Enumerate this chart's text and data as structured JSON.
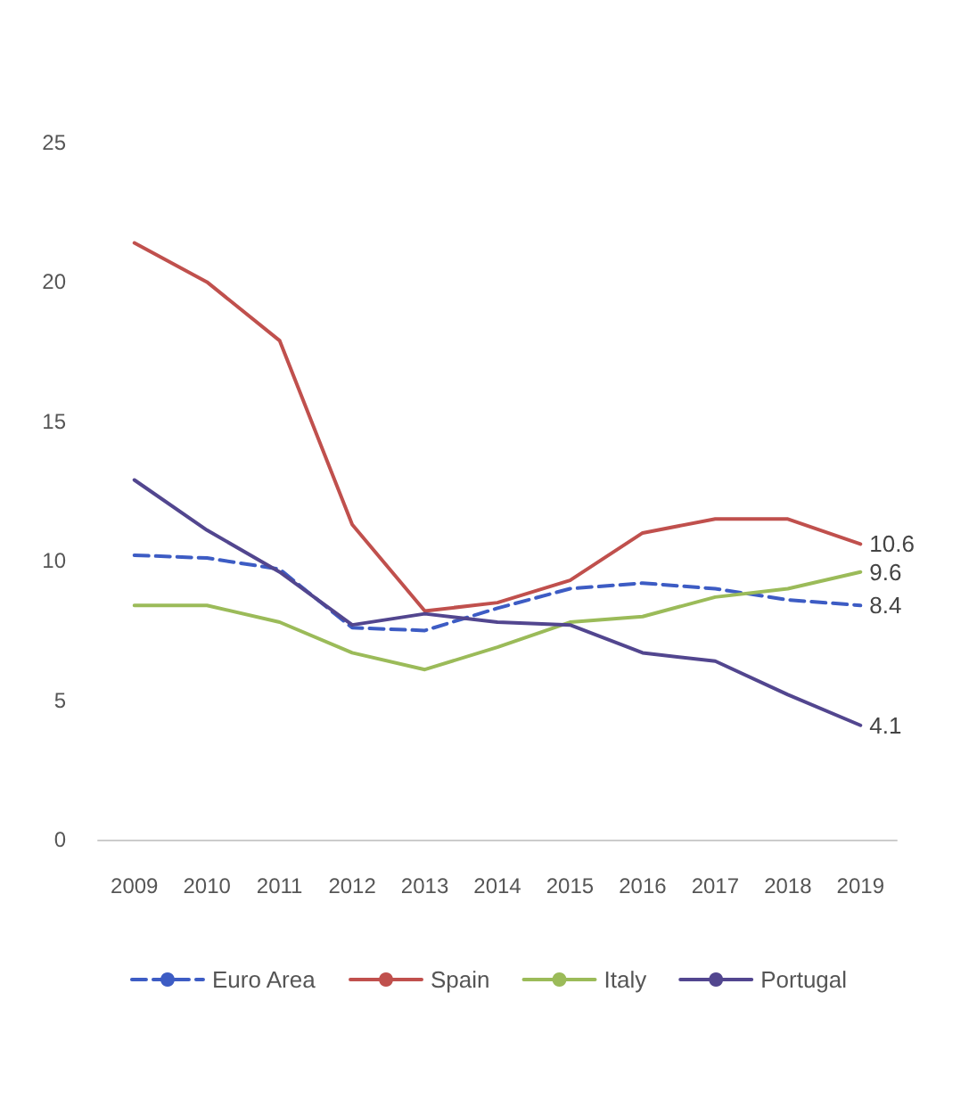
{
  "chart_data": {
    "type": "line",
    "categories": [
      "2009",
      "2010",
      "2011",
      "2012",
      "2013",
      "2014",
      "2015",
      "2016",
      "2017",
      "2018",
      "2019"
    ],
    "series": [
      {
        "name": "Euro Area",
        "color": "#3d5cc4",
        "line_style": "dashed",
        "values": [
          10.2,
          10.1,
          9.7,
          7.6,
          7.5,
          8.3,
          9.0,
          9.2,
          9.0,
          8.6,
          8.4
        ],
        "value_labels": [
          null,
          null,
          null,
          null,
          null,
          null,
          null,
          null,
          null,
          null,
          "8.4"
        ]
      },
      {
        "name": "Spain",
        "color": "#c0504d",
        "values": [
          21.4,
          20.0,
          17.9,
          11.3,
          8.2,
          8.5,
          9.3,
          11.0,
          11.5,
          11.5,
          10.6
        ],
        "value_labels": [
          null,
          null,
          null,
          null,
          null,
          null,
          null,
          null,
          null,
          null,
          "10.6"
        ]
      },
      {
        "name": "Italy",
        "color": "#9bbb59",
        "values": [
          8.4,
          8.4,
          7.8,
          6.7,
          6.1,
          6.9,
          7.8,
          8.0,
          8.7,
          9.0,
          9.6
        ],
        "value_labels": [
          null,
          null,
          null,
          null,
          null,
          null,
          null,
          null,
          null,
          null,
          "9.6"
        ]
      },
      {
        "name": "Portugal",
        "color": "#52468f",
        "values": [
          12.9,
          11.1,
          9.6,
          7.7,
          8.1,
          7.8,
          7.7,
          6.7,
          6.4,
          5.2,
          4.1
        ],
        "value_labels": [
          null,
          null,
          null,
          null,
          null,
          null,
          null,
          null,
          null,
          null,
          "4.1"
        ]
      }
    ],
    "ylim": [
      0,
      25
    ],
    "yticks": [
      0,
      5,
      10,
      15,
      20,
      25
    ],
    "grid": false,
    "legend": "bottom",
    "marker": "none",
    "line_style": "solid"
  }
}
